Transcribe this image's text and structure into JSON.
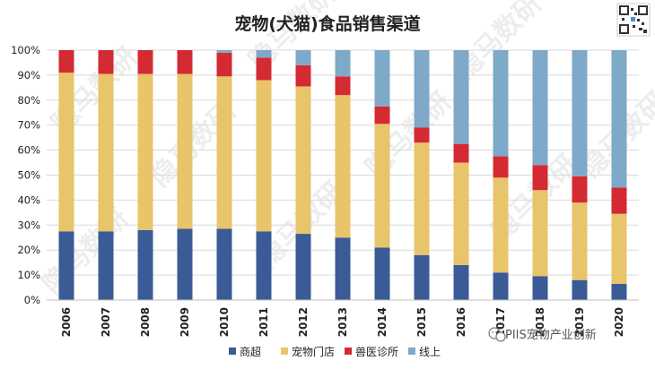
{
  "chart_data": {
    "type": "bar",
    "stacked": true,
    "title": "宠物(犬猫)食品销售渠道",
    "categories": [
      "2006",
      "2007",
      "2008",
      "2009",
      "2010",
      "2011",
      "2012",
      "2013",
      "2014",
      "2015",
      "2016",
      "2017",
      "2018",
      "2019",
      "2020"
    ],
    "series": [
      {
        "name": "商超",
        "color": "#3a5b96",
        "values": [
          27.5,
          27.5,
          28,
          28.5,
          28.5,
          27.5,
          26.5,
          25,
          21,
          18,
          14,
          11,
          9.5,
          8,
          6.5
        ]
      },
      {
        "name": "宠物门店",
        "color": "#e8c46a",
        "values": [
          63.5,
          63,
          62.5,
          62,
          61,
          60.5,
          59,
          57,
          49.5,
          45,
          41,
          38,
          34.5,
          31,
          28
        ]
      },
      {
        "name": "兽医诊所",
        "color": "#d42a33",
        "values": [
          9,
          9.5,
          9.5,
          9.5,
          9.5,
          9,
          8.5,
          7.5,
          7,
          6,
          7.5,
          8.5,
          10,
          10.5,
          10.5
        ]
      },
      {
        "name": "线上",
        "color": "#7ea9c8",
        "values": [
          0,
          0,
          0,
          0,
          1,
          3,
          6,
          10.5,
          22.5,
          31,
          37.5,
          42.5,
          46,
          50.5,
          55
        ]
      }
    ],
    "ylim": [
      0,
      100
    ],
    "yticks": [
      "0%",
      "10%",
      "20%",
      "30%",
      "40%",
      "50%",
      "60%",
      "70%",
      "80%",
      "90%",
      "100%"
    ],
    "grid": true,
    "legend_position": "bottom"
  },
  "watermark": "隐马数研",
  "credit": "PIIS宠物产业创新",
  "qr_icon": "qr-code-icon",
  "wechat_icon": "wechat-icon"
}
